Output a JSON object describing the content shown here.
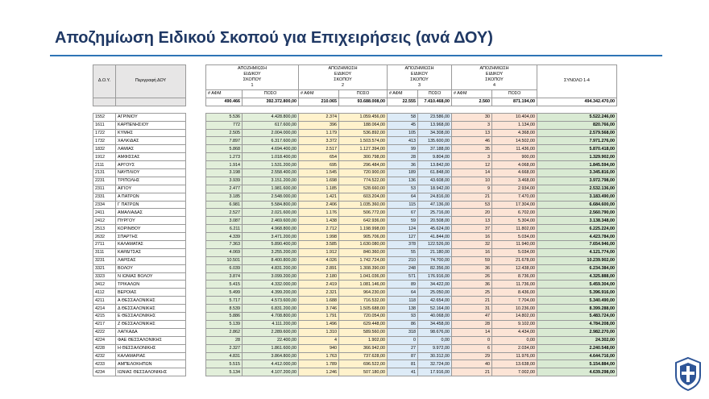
{
  "header": {
    "title": "Αποζημίωση Ειδικού Σκοπού για Επιχειρήσεις (ανά ΔΟΥ)"
  },
  "table": {
    "col_code": "Δ.Ο.Υ.",
    "col_desc": "Περιγραφή ΔΟΥ",
    "groups": [
      {
        "name": "ΑΠΟΖΗΜΙΩΣΗ ΕΙΔΙΚΟΥ ΣΚΟΠΟΥ",
        "number": "1"
      },
      {
        "name": "ΑΠΟΖΗΜΙΩΣΗ ΕΙΔΙΚΟΥ ΣΚΟΠΟΥ",
        "number": "2"
      },
      {
        "name": "ΑΠΟΖΗΜΙΩΣΗ ΕΙΔΙΚΟΥ ΣΚΟΠΟΥ",
        "number": "3"
      },
      {
        "name": "ΑΠΟΖΗΜΙΩΣΗ ΕΙΔΙΚΟΥ ΣΚΟΠΟΥ",
        "number": "4"
      }
    ],
    "col_total": "ΣΥΝΟΛΟ 1-4",
    "sub_count": "# ΑΦΜ",
    "sub_amount": "ΠΟΣΟ",
    "totals": [
      "490.466",
      "392.372.800,00",
      "210.065",
      "93.688.008,00",
      "22.555",
      "7.410.468,00",
      "2.560",
      "871.194,00",
      "494.342.470,00"
    ],
    "rows": [
      [
        "1552",
        "ΑΓΡΙΝΙΟΥ",
        "5.536",
        "4.428.800,00",
        "2.374",
        "1.059.456,00",
        "58",
        "23.586,00",
        "30",
        "10.404,00",
        "5.522.246,00"
      ],
      [
        "1611",
        "ΚΑΡΠΕΝΗΣΙΟΥ",
        "772",
        "617.600,00",
        "396",
        "188.064,00",
        "45",
        "13.968,00",
        "3",
        "1.134,00",
        "820.766,00"
      ],
      [
        "1722",
        "ΚΥΜΗΣ",
        "2.505",
        "2.004.000,00",
        "1.179",
        "536.892,00",
        "105",
        "34.308,00",
        "13",
        "4.368,00",
        "2.579.568,00"
      ],
      [
        "1732",
        "ΧΑΛΚΙΔΑΣ",
        "7.897",
        "6.317.600,00",
        "3.372",
        "1.503.574,00",
        "413",
        "135.600,00",
        "46",
        "14.502,00",
        "7.971.276,00"
      ],
      [
        "1832",
        "ΛΑΜΙΑΣ",
        "5.868",
        "4.694.400,00",
        "2.517",
        "1.127.394,00",
        "99",
        "37.188,00",
        "35",
        "11.436,00",
        "5.870.418,00"
      ],
      [
        "1912",
        "ΑΜΦΙΣΣΑΣ",
        "1.273",
        "1.018.400,00",
        "654",
        "300.798,00",
        "28",
        "9.804,00",
        "3",
        "900,00",
        "1.329.902,00"
      ],
      [
        "2111",
        "ΑΡΓΟΥΣ",
        "1.914",
        "1.531.200,00",
        "695",
        "296.484,00",
        "36",
        "13.842,00",
        "12",
        "4.068,00",
        "1.845.594,00"
      ],
      [
        "2131",
        "ΝΑΥΠΛΙΟΥ",
        "3.198",
        "2.558.400,00",
        "1.545",
        "720.900,00",
        "189",
        "61.848,00",
        "14",
        "4.668,00",
        "3.345.816,00"
      ],
      [
        "2231",
        "ΤΡΙΠΟΛΗΣ",
        "3.939",
        "3.151.200,00",
        "1.698",
        "774.522,00",
        "136",
        "43.608,00",
        "10",
        "3.468,00",
        "3.972.798,00"
      ],
      [
        "2311",
        "ΑΙΓΙΟΥ",
        "2.477",
        "1.981.600,00",
        "1.185",
        "528.660,00",
        "53",
        "18.942,00",
        "9",
        "2.934,00",
        "2.532.136,00"
      ],
      [
        "2331",
        "Α ΠΑΤΡΩΝ",
        "3.185",
        "2.548.000,00",
        "1.421",
        "603.204,00",
        "64",
        "24.816,00",
        "21",
        "7.470,00",
        "3.183.490,00"
      ],
      [
        "2334",
        "Γ ΠΑΤΡΩΝ",
        "6.981",
        "5.584.800,00",
        "2.406",
        "1.035.360,00",
        "115",
        "47.136,00",
        "53",
        "17.304,00",
        "6.684.600,00"
      ],
      [
        "2411",
        "ΑΜΑΛΙΑΔΑΣ",
        "2.527",
        "2.021.600,00",
        "1.176",
        "506.772,00",
        "67",
        "25.716,00",
        "20",
        "6.702,00",
        "2.560.790,00"
      ],
      [
        "2412",
        "ΠΥΡΓΟΥ",
        "3.087",
        "2.469.600,00",
        "1.438",
        "642.936,00",
        "59",
        "20.508,00",
        "13",
        "5.304,00",
        "3.138.348,00"
      ],
      [
        "2513",
        "ΚΟΡΙΝΘΟΥ",
        "6.211",
        "4.968.800,00",
        "2.712",
        "1.198.998,00",
        "124",
        "45.624,00",
        "37",
        "11.802,00",
        "6.225.224,00"
      ],
      [
        "2632",
        "ΣΠΑΡΤΗΣ",
        "4.339",
        "3.471.200,00",
        "1.998",
        "905.706,00",
        "127",
        "41.844,00",
        "16",
        "5.034,00",
        "4.423.784,00"
      ],
      [
        "2711",
        "ΚΑΛΑΜΑΤΑΣ",
        "7.363",
        "5.890.400,00",
        "3.585",
        "1.630.080,00",
        "378",
        "122.526,00",
        "32",
        "11.940,00",
        "7.654.946,00"
      ],
      [
        "3111",
        "ΚΑΡΔΙΤΣΑΣ",
        "4.069",
        "3.255.200,00",
        "1.912",
        "840.360,00",
        "55",
        "21.180,00",
        "16",
        "5.034,00",
        "4.121.774,00"
      ],
      [
        "3231",
        "ΛΑΡΙΣΑΣ",
        "10.501",
        "8.400.800,00",
        "4.026",
        "1.742.724,00",
        "210",
        "74.700,00",
        "59",
        "21.678,00",
        "10.239.902,00"
      ],
      [
        "3321",
        "ΒΟΛΟΥ",
        "6.039",
        "4.831.200,00",
        "2.891",
        "1.308.390,00",
        "248",
        "82.356,00",
        "36",
        "12.438,00",
        "6.234.384,00"
      ],
      [
        "3323",
        "Ν ΙΩΝΙΑΣ ΒΟΛΟΥ",
        "3.874",
        "3.099.200,00",
        "2.180",
        "1.041.036,00",
        "571",
        "176.916,00",
        "26",
        "8.736,00",
        "4.325.888,00"
      ],
      [
        "3412",
        "ΤΡΙΚΑΛΩΝ",
        "5.415",
        "4.332.000,00",
        "2.419",
        "1.081.146,00",
        "89",
        "34.422,00",
        "36",
        "11.736,00",
        "5.459.304,00"
      ],
      [
        "4112",
        "ΒΕΡΟΙΑΣ",
        "5.499",
        "4.399.200,00",
        "2.321",
        "964.230,00",
        "64",
        "25.050,00",
        "25",
        "8.436,00",
        "5.396.916,00"
      ],
      [
        "4211",
        "Α ΘΕΣΣΑΛΟΝΙΚΗΣ",
        "5.717",
        "4.573.600,00",
        "1.688",
        "716.532,00",
        "118",
        "42.654,00",
        "21",
        "7.704,00",
        "5.340.490,00"
      ],
      [
        "4214",
        "Δ ΘΕΣΣΑΛΟΝΙΚΗΣ",
        "8.539",
        "6.831.200,00",
        "3.746",
        "1.505.688,00",
        "138",
        "52.164,00",
        "31",
        "10.236,00",
        "8.399.288,00"
      ],
      [
        "4215",
        "Ε ΘΕΣΣΑΛΟΝΙΚΗΣ",
        "5.886",
        "4.708.800,00",
        "1.791",
        "720.054,00",
        "93",
        "40.068,00",
        "47",
        "14.802,00",
        "5.483.724,00"
      ],
      [
        "4217",
        "Ζ ΘΕΣΣΑΛΟΝΙΚΗΣ",
        "5.139",
        "4.111.200,00",
        "1.496",
        "629.448,00",
        "86",
        "34.458,00",
        "28",
        "9.102,00",
        "4.784.208,00"
      ],
      [
        "4222",
        "ΛΑΓΚΑΔΑ",
        "2.862",
        "2.289.600,00",
        "1.310",
        "589.560,00",
        "318",
        "98.676,00",
        "14",
        "4.434,00",
        "2.982.270,00"
      ],
      [
        "4224",
        "ΦΑΕ ΘΕΣΣΑΛΟΝΙΚΗΣ",
        "28",
        "22.400,00",
        "4",
        "1.902,00",
        "0",
        "0,00",
        "0",
        "0,00",
        "24.302,00"
      ],
      [
        "4228",
        "Η ΘΕΣΣΑΛΟΝΙΚΗΣ",
        "2.327",
        "1.861.600,00",
        "940",
        "366.942,00",
        "27",
        "9.972,00",
        "6",
        "2.034,00",
        "2.240.548,00"
      ],
      [
        "4232",
        "ΚΑΛΑΜΑΡΙΑΣ",
        "4.831",
        "3.864.800,00",
        "1.763",
        "737.628,00",
        "87",
        "30.312,00",
        "29",
        "11.976,00",
        "4.644.716,00"
      ],
      [
        "4233",
        "ΑΜΠΕΛΟΚΗΠΩΝ",
        "5.515",
        "4.412.000,00",
        "1.789",
        "696.522,00",
        "81",
        "32.724,00",
        "40",
        "13.638,00",
        "5.154.884,00"
      ],
      [
        "4234",
        "ΙΩΝΙΑΣ ΘΕΣΣΑΛΟΝΙΚΗΣ",
        "5.134",
        "4.107.200,00",
        "1.246",
        "507.180,00",
        "41",
        "17.916,00",
        "21",
        "7.002,00",
        "4.639.298,00"
      ]
    ]
  }
}
